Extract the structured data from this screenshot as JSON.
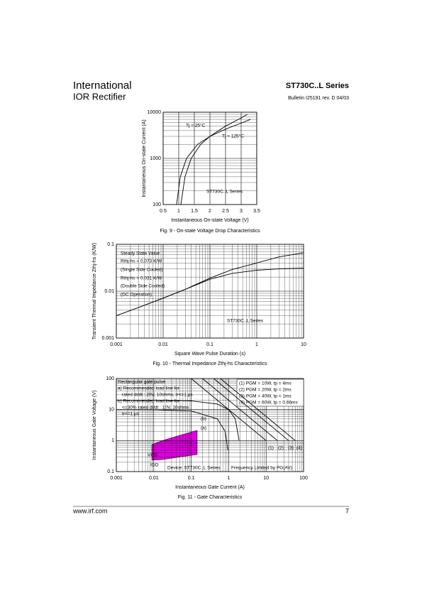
{
  "header": {
    "brand_top": "International",
    "brand_bottom": "IOR Rectifier",
    "series": "ST730C..L Series",
    "bulletin": "Bulletin  I25191  rev. D  04/03"
  },
  "chart_data": [
    {
      "type": "line",
      "xscale": "linear",
      "yscale": "log",
      "xlim": [
        0.5,
        3.5
      ],
      "ylim": [
        100,
        10000
      ],
      "xticks": [
        0.5,
        1,
        1.5,
        2,
        2.5,
        3,
        3.5
      ],
      "yticks": [
        100,
        1000,
        10000
      ],
      "grid": true,
      "xlabel": "Instantaneous On-state Voltage (V)",
      "ylabel": "Instantaneous On-state Current (A)",
      "caption": "Fig. 9 - On-state Voltage Drop Characteristics",
      "series": [
        {
          "name": "Tj = 25°C",
          "color": "#000000",
          "x": [
            1.07,
            1.2,
            1.4,
            1.7,
            2.0,
            2.5,
            3.0,
            3.2
          ],
          "values": [
            100,
            400,
            1000,
            2000,
            3000,
            5000,
            7500,
            9000
          ]
        },
        {
          "name": "Tj = 125°C",
          "color": "#000000",
          "x": [
            0.93,
            1.05,
            1.25,
            1.6,
            2.0,
            2.5,
            3.0,
            3.3
          ],
          "values": [
            100,
            400,
            1000,
            2000,
            3000,
            4300,
            5800,
            7000
          ]
        }
      ],
      "annotations": [
        "ST730C..L Series"
      ]
    },
    {
      "type": "line",
      "xscale": "log",
      "yscale": "log",
      "xlim": [
        0.001,
        10
      ],
      "ylim": [
        0.001,
        0.1
      ],
      "xticks": [
        0.001,
        0.01,
        0.1,
        1,
        10
      ],
      "yticks": [
        0.001,
        0.01,
        0.1
      ],
      "grid": true,
      "xlabel": "Square Wave Pulse Duration (s)",
      "ylabel": "Transient Thermal Impedance Zthj-hs (K/W)",
      "caption": "Fig. 10 - Thermal Impedance Zthj-hs Characteristics",
      "series": [
        {
          "name": "Rthj-hs = 0.073 K/W",
          "color": "#000000",
          "x": [
            0.001,
            0.003,
            0.01,
            0.03,
            0.1,
            0.3,
            1,
            3,
            10
          ],
          "values": [
            0.003,
            0.0045,
            0.0071,
            0.011,
            0.019,
            0.029,
            0.04,
            0.054,
            0.066
          ]
        },
        {
          "name": "Rthj-hs = 0.031 K/W",
          "color": "#000000",
          "x": [
            0.001,
            0.003,
            0.01,
            0.03,
            0.1,
            0.3,
            1,
            3,
            10
          ],
          "values": [
            0.003,
            0.0045,
            0.0071,
            0.011,
            0.018,
            0.024,
            0.028,
            0.03,
            0.031
          ]
        }
      ],
      "annotations": [
        "Steady State Value",
        "(Single Side Cooled)",
        "(Double Side Cooled)",
        "(DC Operation)",
        "ST730C..L Series"
      ]
    },
    {
      "type": "line",
      "xscale": "log",
      "yscale": "log",
      "xlim": [
        0.001,
        100
      ],
      "ylim": [
        0.1,
        100
      ],
      "xticks": [
        0.001,
        0.01,
        0.1,
        1,
        10,
        100
      ],
      "yticks": [
        0.1,
        1,
        10,
        100
      ],
      "grid": true,
      "xlabel": "Instantaneous Gate Current (A)",
      "ylabel": "Instantaneous Gate Voltage (V)",
      "caption": "Fig. 11 - Gate Characteristics",
      "series": [
        {
          "name": "(a)",
          "color": "#000000",
          "x": [
            0.001,
            0.01,
            0.1,
            0.5,
            1,
            1.5,
            1.9
          ],
          "values": [
            19.99,
            19.9,
            19,
            15,
            10,
            5,
            1
          ]
        },
        {
          "name": "(b)",
          "color": "#000000",
          "x": [
            0.001,
            0.01,
            0.1,
            0.5,
            0.8,
            0.95
          ],
          "values": [
            9.99,
            9.9,
            9,
            5,
            2,
            0.5
          ]
        },
        {
          "name": "(1) PGM = 10W, tp = 4ms",
          "color": "#000000",
          "x": [
            0.1,
            10
          ],
          "values": [
            100,
            1
          ]
        },
        {
          "name": "(2) PGM = 20W, tp = 2ms",
          "color": "#000000",
          "x": [
            0.2,
            20
          ],
          "values": [
            100,
            1
          ]
        },
        {
          "name": "(3) PGM = 40W, tp = 1ms",
          "color": "#000000",
          "x": [
            0.4,
            40
          ],
          "values": [
            100,
            1
          ]
        },
        {
          "name": "(4) PGM = 60W, tp = 0.66ms",
          "color": "#000000",
          "x": [
            0.6,
            60
          ],
          "values": [
            100,
            1
          ]
        }
      ],
      "annotations": [
        "Rectangular gate pulse",
        "a) Recommended load line for",
        "rated di/dt : 20V, 10ohms; tr<=1 µs",
        "b) Recommended load line for",
        "<=30% rated di/dt : 10V, 10ohms",
        "tr<=1 µs",
        "VGD",
        "IGD",
        "Device: ST730C..L Series",
        "Frequency Limited by PG(AV)",
        "(1)",
        "(2)",
        "(3)",
        "(4)"
      ]
    }
  ],
  "footer": {
    "url": "www.irf.com",
    "page": "7"
  }
}
